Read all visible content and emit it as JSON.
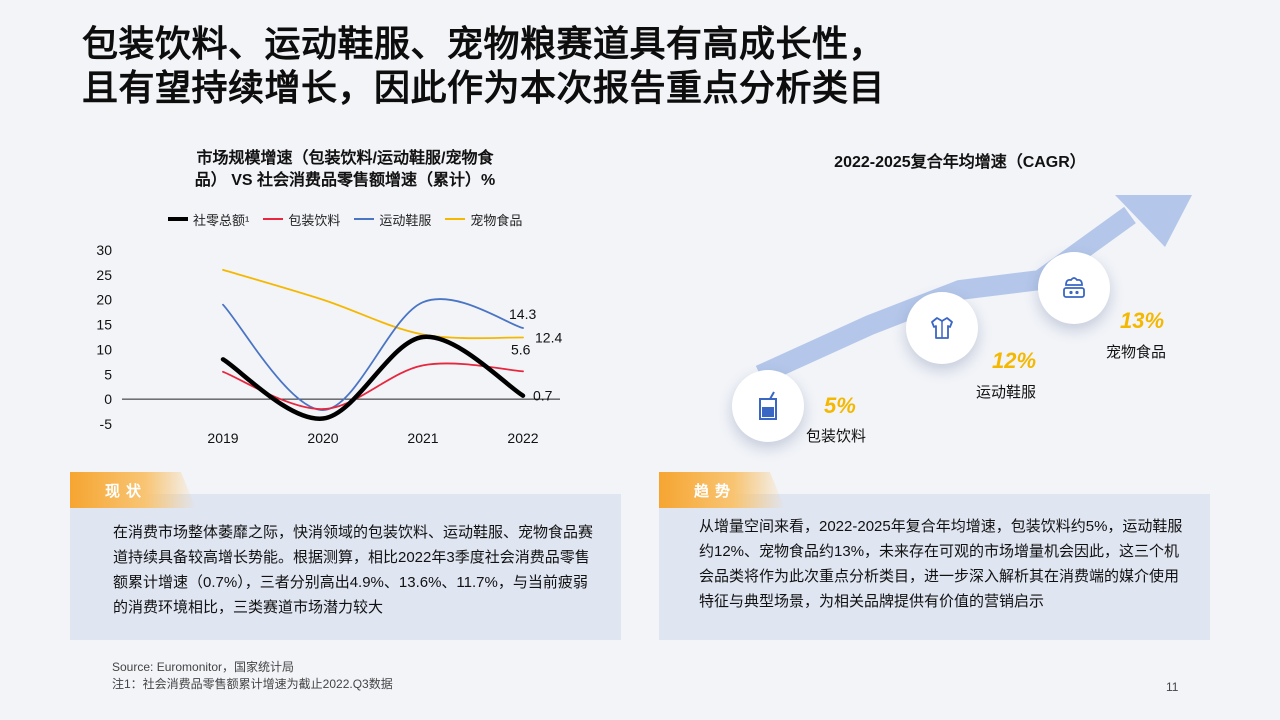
{
  "title": {
    "line1": "包装饮料、运动鞋服、宠物粮赛道具有高成长性，",
    "line2": "且有望持续增长，因此作为本次报告重点分析类目"
  },
  "chart_data": [
    {
      "type": "line",
      "title_line1": "市场规模增速（包装饮料/运动鞋服/宠物食",
      "title_line2": "品） VS 社会消费品零售额增速（累计）%",
      "categories": [
        "2019",
        "2020",
        "2021",
        "2022"
      ],
      "ylim": [
        -5,
        30
      ],
      "yticks": [
        30,
        25,
        20,
        15,
        10,
        5,
        0,
        -5
      ],
      "series": [
        {
          "name": "社零总额¹",
          "values": [
            8.0,
            -3.9,
            12.5,
            0.7
          ],
          "color": "#000000",
          "end_label": "0.7"
        },
        {
          "name": "包装饮料",
          "values": [
            5.5,
            -2.0,
            6.8,
            5.6
          ],
          "color": "#e8263d",
          "end_label": "5.6"
        },
        {
          "name": "运动鞋服",
          "values": [
            19.0,
            -2.2,
            19.5,
            14.3
          ],
          "color": "#4a74c4",
          "end_label": "14.3"
        },
        {
          "name": "宠物食品",
          "values": [
            26.0,
            20.0,
            13.0,
            12.4
          ],
          "color": "#f5b800",
          "end_label": "12.4"
        }
      ]
    },
    {
      "type": "bar",
      "title": "2022-2025复合年均增速（CAGR）",
      "categories": [
        "包装饮料",
        "运动鞋服",
        "宠物食品"
      ],
      "values": [
        5,
        12,
        13
      ],
      "value_labels": [
        "5%",
        "12%",
        "13%"
      ]
    }
  ],
  "cagr_items": [
    {
      "pct": "5%",
      "label": "包装饮料",
      "icon": "beverage-icon"
    },
    {
      "pct": "12%",
      "label": "运动鞋服",
      "icon": "jacket-icon"
    },
    {
      "pct": "13%",
      "label": "宠物食品",
      "icon": "pet-food-icon"
    }
  ],
  "status_section": {
    "tab": "现状",
    "text": "在消费市场整体萎靡之际，快消领域的包装饮料、运动鞋服、宠物食品赛道持续具备较高增长势能。根据测算，相比2022年3季度社会消费品零售额累计增速（0.7%），三者分别高出4.9%、13.6%、11.7%，与当前疲弱的消费环境相比，三类赛道市场潜力较大"
  },
  "trend_section": {
    "tab": "趋势",
    "text": "从增量空间来看，2022-2025年复合年均增速，包装饮料约5%，运动鞋服约12%、宠物食品约13%，未来存在可观的市场增量机会因此，这三个机会品类将作为此次重点分析类目，进一步深入解析其在消费端的媒介使用特征与典型场景，为相关品牌提供有价值的营销启示"
  },
  "footnotes": {
    "source": "Source: Euromonitor，国家统计局",
    "note1": "注1：社会消费品零售额累计增速为截止2022.Q3数据"
  },
  "page_number": "11",
  "colors": {
    "accent": "#f5b800",
    "tab_orange": "#f6a531",
    "panel_bg": "#dfe5f1",
    "arrow": "#b4c7ea"
  }
}
